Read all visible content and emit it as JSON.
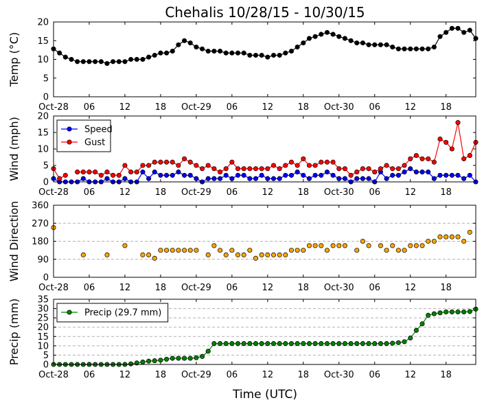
{
  "title": "Chehalis 10/28/15 - 10/30/15",
  "xlabel": "Time (UTC)",
  "x_tick_labels": [
    "Oct-28",
    "06",
    "12",
    "18",
    "Oct-29",
    "06",
    "12",
    "18",
    "Oct-30",
    "06",
    "12",
    "18"
  ],
  "x_tick_hours": [
    0,
    6,
    12,
    18,
    24,
    30,
    36,
    42,
    48,
    54,
    60,
    66
  ],
  "xlim_hours": [
    0,
    71
  ],
  "chart_data": [
    {
      "type": "line",
      "ylabel": "Temp (°C)",
      "ylim": [
        0,
        20
      ],
      "yticks": [
        0,
        5,
        10,
        15,
        20
      ],
      "grid": false,
      "legend": null,
      "series": [
        {
          "color": "#000000",
          "x_hours": [
            0,
            1,
            2,
            3,
            4,
            5,
            6,
            7,
            8,
            9,
            10,
            11,
            12,
            13,
            14,
            15,
            16,
            17,
            18,
            19,
            20,
            21,
            22,
            23,
            24,
            25,
            26,
            27,
            28,
            29,
            30,
            31,
            32,
            33,
            34,
            35,
            36,
            37,
            38,
            39,
            40,
            41,
            42,
            43,
            44,
            45,
            46,
            47,
            48,
            49,
            50,
            51,
            52,
            53,
            54,
            55,
            56,
            57,
            58,
            59,
            60,
            61,
            62,
            63,
            64,
            65,
            66,
            67,
            68,
            69,
            70,
            71
          ],
          "values": [
            12.8,
            11.7,
            10.6,
            10.0,
            9.4,
            9.4,
            9.4,
            9.4,
            9.4,
            8.9,
            9.4,
            9.4,
            9.4,
            10.0,
            10.0,
            10.0,
            10.6,
            11.1,
            11.7,
            11.7,
            12.2,
            13.9,
            15.0,
            14.4,
            13.3,
            12.8,
            12.2,
            12.2,
            12.2,
            11.7,
            11.7,
            11.7,
            11.7,
            11.1,
            11.1,
            11.1,
            10.6,
            11.1,
            11.1,
            11.7,
            12.2,
            13.3,
            14.4,
            15.6,
            16.1,
            16.7,
            17.2,
            16.7,
            16.1,
            15.6,
            15.0,
            14.4,
            14.4,
            13.9,
            13.9,
            13.9,
            13.9,
            13.3,
            12.8,
            12.8,
            12.8,
            12.8,
            12.8,
            12.8,
            13.3,
            16.1,
            17.2,
            18.3,
            18.3,
            17.2,
            17.8,
            15.6
          ]
        }
      ]
    },
    {
      "type": "line",
      "ylabel": "Wind (mph)",
      "ylim": [
        0,
        20
      ],
      "yticks": [
        0,
        5,
        10,
        15,
        20
      ],
      "grid": false,
      "legend": "top-left",
      "series": [
        {
          "name": "Speed",
          "color": "#0000ff",
          "x_hours": [
            0,
            1,
            2,
            3,
            4,
            5,
            6,
            7,
            8,
            9,
            10,
            11,
            12,
            13,
            14,
            15,
            16,
            17,
            18,
            19,
            20,
            21,
            22,
            23,
            24,
            25,
            26,
            27,
            28,
            29,
            30,
            31,
            32,
            33,
            34,
            35,
            36,
            37,
            38,
            39,
            40,
            41,
            42,
            43,
            44,
            45,
            46,
            47,
            48,
            49,
            50,
            51,
            52,
            53,
            54,
            55,
            56,
            57,
            58,
            59,
            60,
            61,
            62,
            63,
            64,
            65,
            66,
            67,
            68,
            69,
            70,
            71
          ],
          "values": [
            1,
            0,
            0,
            0,
            0,
            1,
            0,
            0,
            0,
            1,
            0,
            0,
            1,
            0,
            0,
            3,
            1,
            3,
            2,
            2,
            2,
            3,
            2,
            2,
            1,
            0,
            1,
            1,
            1,
            2,
            1,
            2,
            2,
            1,
            1,
            2,
            1,
            1,
            1,
            2,
            2,
            3,
            2,
            1,
            2,
            2,
            3,
            2,
            1,
            1,
            0,
            1,
            1,
            1,
            0,
            3,
            1,
            2,
            2,
            3,
            4,
            3,
            3,
            3,
            1,
            2,
            2,
            2,
            2,
            1,
            2,
            0
          ]
        },
        {
          "name": "Gust",
          "color": "#ff0000",
          "x_hours": [
            0,
            1,
            2,
            3,
            4,
            5,
            6,
            7,
            8,
            9,
            10,
            11,
            12,
            13,
            14,
            15,
            16,
            17,
            18,
            19,
            20,
            21,
            22,
            23,
            24,
            25,
            26,
            27,
            28,
            29,
            30,
            31,
            32,
            33,
            34,
            35,
            36,
            37,
            38,
            39,
            40,
            41,
            42,
            43,
            44,
            45,
            46,
            47,
            48,
            49,
            50,
            51,
            52,
            53,
            54,
            55,
            56,
            57,
            58,
            59,
            60,
            61,
            62,
            63,
            64,
            65,
            66,
            67,
            68,
            69,
            70,
            71
          ],
          "values": [
            4,
            1,
            2,
            null,
            3,
            3,
            3,
            3,
            2,
            3,
            2,
            2,
            5,
            3,
            3,
            5,
            5,
            6,
            6,
            6,
            6,
            5,
            7,
            6,
            5,
            4,
            5,
            4,
            3,
            4,
            6,
            4,
            4,
            4,
            4,
            4,
            4,
            5,
            4,
            5,
            6,
            5,
            7,
            5,
            5,
            6,
            6,
            6,
            4,
            4,
            2,
            3,
            4,
            4,
            3,
            4,
            5,
            4,
            4,
            5,
            7,
            8,
            7,
            7,
            6,
            13,
            12,
            10,
            18,
            7,
            8,
            12
          ]
        }
      ]
    },
    {
      "type": "scatter",
      "ylabel": "Wind Direction",
      "ylim": [
        0,
        360
      ],
      "yticks": [
        0,
        90,
        180,
        270,
        360
      ],
      "grid": true,
      "legend": null,
      "series": [
        {
          "color": "#ffa500",
          "x_hours": [
            0,
            5,
            9,
            12,
            15,
            16,
            17,
            18,
            19,
            20,
            21,
            22,
            23,
            24,
            26,
            27,
            28,
            29,
            30,
            31,
            32,
            33,
            34,
            35,
            36,
            37,
            38,
            39,
            40,
            41,
            42,
            43,
            44,
            45,
            46,
            47,
            48,
            49,
            51,
            52,
            53,
            55,
            56,
            57,
            58,
            59,
            60,
            61,
            62,
            63,
            64,
            65,
            66,
            67,
            68,
            69,
            70
          ],
          "values": [
            248,
            112,
            112,
            158,
            112,
            112,
            95,
            135,
            135,
            135,
            135,
            135,
            135,
            135,
            112,
            158,
            135,
            112,
            135,
            112,
            112,
            135,
            95,
            112,
            112,
            112,
            112,
            112,
            135,
            135,
            135,
            158,
            158,
            158,
            135,
            158,
            158,
            158,
            135,
            180,
            158,
            158,
            135,
            158,
            135,
            135,
            158,
            158,
            158,
            180,
            180,
            202,
            202,
            202,
            202,
            180,
            225
          ]
        }
      ]
    },
    {
      "type": "line",
      "ylabel": "Precip (mm)",
      "ylim": [
        0,
        35
      ],
      "yticks": [
        0,
        5,
        10,
        15,
        20,
        25,
        30,
        35
      ],
      "grid": true,
      "legend": "top-left",
      "series": [
        {
          "name": "Precip (29.7 mm)",
          "color": "#008000",
          "x_hours": [
            0,
            1,
            2,
            3,
            4,
            5,
            6,
            7,
            8,
            9,
            10,
            11,
            12,
            13,
            14,
            15,
            16,
            17,
            18,
            19,
            20,
            21,
            22,
            23,
            24,
            25,
            26,
            27,
            28,
            29,
            30,
            31,
            32,
            33,
            34,
            35,
            36,
            37,
            38,
            39,
            40,
            41,
            42,
            43,
            44,
            45,
            46,
            47,
            48,
            49,
            50,
            51,
            52,
            53,
            54,
            55,
            56,
            57,
            58,
            59,
            60,
            61,
            62,
            63,
            64,
            65,
            66,
            67,
            68,
            69,
            70,
            71
          ],
          "values": [
            0,
            0,
            0,
            0,
            0,
            0,
            0,
            0,
            0,
            0,
            0,
            0,
            0,
            0.3,
            0.8,
            1.3,
            1.8,
            2.0,
            2.3,
            2.8,
            3.3,
            3.3,
            3.3,
            3.3,
            3.6,
            4.3,
            7.1,
            11.2,
            11.2,
            11.2,
            11.2,
            11.2,
            11.2,
            11.2,
            11.2,
            11.2,
            11.2,
            11.2,
            11.2,
            11.2,
            11.2,
            11.2,
            11.2,
            11.2,
            11.2,
            11.2,
            11.2,
            11.2,
            11.2,
            11.2,
            11.2,
            11.2,
            11.2,
            11.2,
            11.2,
            11.2,
            11.2,
            11.4,
            11.7,
            12.2,
            14.2,
            18.3,
            21.8,
            26.4,
            27.2,
            27.7,
            28.2,
            28.2,
            28.2,
            28.2,
            28.4,
            29.7
          ]
        }
      ]
    }
  ]
}
